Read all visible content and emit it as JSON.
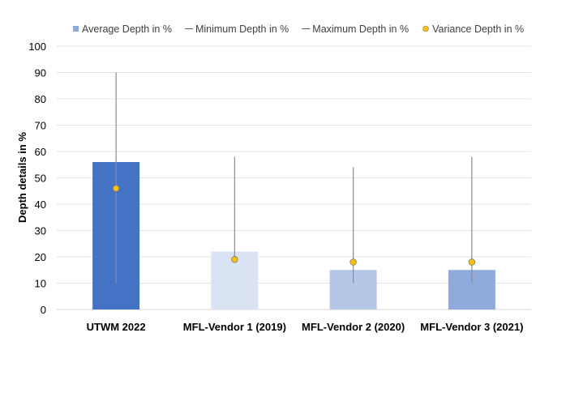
{
  "chart_data": {
    "type": "bar",
    "title": "",
    "xlabel": "",
    "ylabel": "Depth details in %",
    "ylim": [
      0,
      100
    ],
    "yticks": [
      0,
      10,
      20,
      30,
      40,
      50,
      60,
      70,
      80,
      90,
      100
    ],
    "grid": true,
    "legend_position": "top",
    "categories": [
      "UTWM 2022",
      "MFL-Vendor 1 (2019)",
      "MFL-Vendor 2 (2020)",
      "MFL-Vendor 3 (2021)"
    ],
    "bar_colors": [
      "#4472c4",
      "#dae3f3",
      "#b4c7e7",
      "#8faadc"
    ],
    "series": [
      {
        "name": "Average Depth in %",
        "kind": "bar",
        "color": "#8faadc",
        "values": [
          56,
          22,
          15,
          15
        ]
      },
      {
        "name": "Minimum Depth in %",
        "kind": "line",
        "color": "#595959",
        "values": [
          10,
          19,
          10,
          10
        ]
      },
      {
        "name": "Maximum Depth in %",
        "kind": "line",
        "color": "#595959",
        "values": [
          90,
          58,
          54,
          58
        ]
      },
      {
        "name": "Variance Depth in %",
        "kind": "marker",
        "color": "#ffc000",
        "values": [
          46,
          19,
          18,
          18
        ]
      }
    ]
  }
}
